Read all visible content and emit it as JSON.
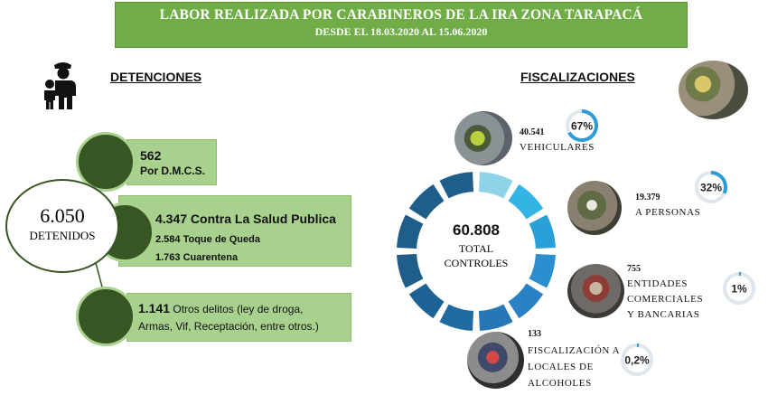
{
  "banner": {
    "title": "LABOR REALIZADA POR CARABINEROS DE LA IRA ZONA TARAPACÁ",
    "subtitle": "DESDE EL 18.03.2020 AL 15.06.2020"
  },
  "detenciones": {
    "heading": "DETENCIONES",
    "total_number": "6.050",
    "total_label": "DETENIDOS",
    "item1": {
      "number": "562",
      "label": "Por D.M.C.S."
    },
    "item2": {
      "headline": "4.347 Contra La Salud Publica",
      "sub1": "2.584 Toque de Queda",
      "sub2": "1.763 Cuarentena"
    },
    "item3": {
      "number": "1.141",
      "text1": "Otros delitos (ley de droga,",
      "text2": "Armas, Vif, Receptación, entre otros.)"
    }
  },
  "fiscalizaciones": {
    "heading": "FISCALIZACIONES",
    "total_number": "60.808",
    "total_line1": "TOTAL",
    "total_line2": "CONTROLES",
    "vehiculares": {
      "number": "40.541",
      "label": "VEHICULARES",
      "pct": "67%",
      "fraction": 0.67
    },
    "personas": {
      "number": "19.379",
      "label": "A PERSONAS",
      "pct": "32%",
      "fraction": 0.32
    },
    "entidades": {
      "number": "755",
      "line1": "ENTIDADES",
      "line2": "COMERCIALES",
      "line3": "Y BANCARIAS",
      "pct": "1%",
      "fraction": 0.01
    },
    "locales": {
      "number": "133",
      "line1": "FISCALIZACIÓN A",
      "line2": "LOCALES DE",
      "line3": "ALCOHOLES",
      "pct": "0,2%",
      "fraction": 0.002
    }
  },
  "colors": {
    "banner_green": "#70ad47",
    "box_green": "#a9d18e",
    "dark_green": "#375623",
    "ring_dark": "#1f5e8a",
    "ring_light": "#8fd3e8",
    "ring_mid": "#2e9ad6"
  }
}
